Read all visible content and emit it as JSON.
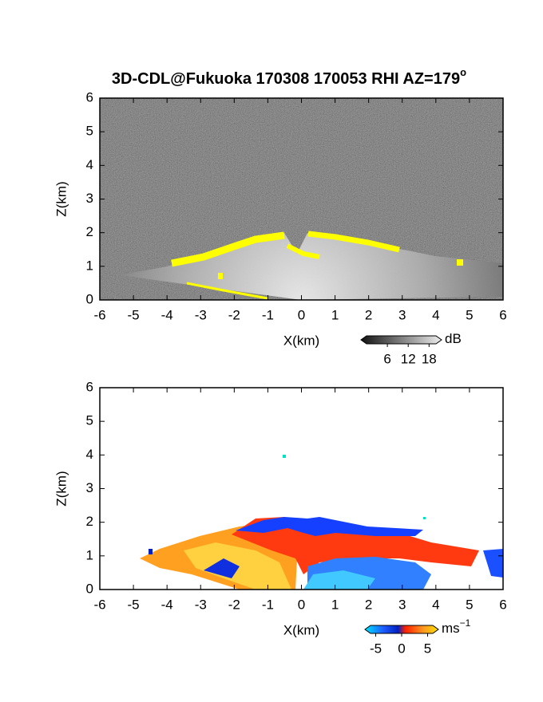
{
  "title": "3D-CDL@Fukuoka 170308 170053 RHI AZ=179",
  "title_superscript": "o",
  "chart_data": [
    {
      "type": "heatmap",
      "xlabel": "X(km)",
      "ylabel": "Z(km)",
      "xlim": [
        -6,
        6
      ],
      "ylim": [
        0,
        6
      ],
      "xticks": [
        -6,
        -5,
        -4,
        -3,
        -2,
        -1,
        0,
        1,
        2,
        3,
        4,
        5,
        6
      ],
      "yticks": [
        0,
        1,
        2,
        3,
        4,
        5,
        6
      ],
      "colorbar": {
        "label": "dB",
        "lim": [
          0,
          20
        ],
        "ticks": [
          6,
          12,
          18
        ]
      }
    },
    {
      "type": "heatmap",
      "xlabel": "X(km)",
      "ylabel": "Z(km)",
      "xlim": [
        -6,
        6
      ],
      "ylim": [
        0,
        6
      ],
      "xticks": [
        -6,
        -5,
        -4,
        -3,
        -2,
        -1,
        0,
        1,
        2,
        3,
        4,
        5,
        6
      ],
      "yticks": [
        0,
        1,
        2,
        3,
        4,
        5,
        6
      ],
      "colorbar": {
        "label": "ms",
        "label_superscript": "−1",
        "lim": [
          -6,
          6
        ],
        "ticks": [
          -5,
          0,
          5
        ]
      }
    }
  ]
}
